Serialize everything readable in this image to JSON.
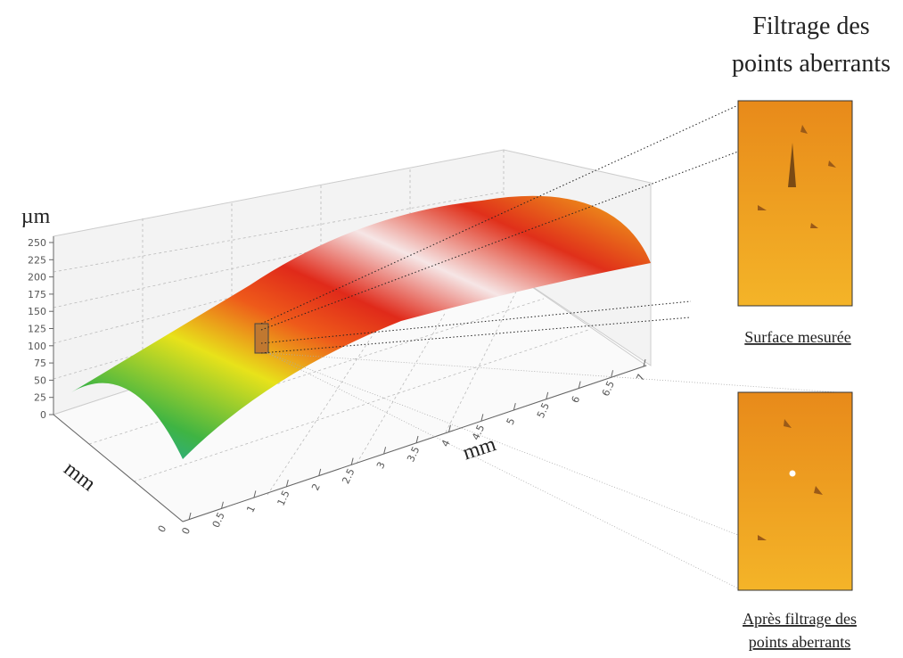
{
  "title": {
    "lines": [
      "Filtrage des",
      "points aberrants"
    ]
  },
  "axes": {
    "z_unit": "µm",
    "x_unit": "mm",
    "y_unit": "mm",
    "z_ticks": [
      0,
      25,
      50,
      75,
      100,
      125,
      150,
      175,
      200,
      225,
      250
    ],
    "x_ticks": [
      0,
      0.5,
      1,
      1.5,
      2,
      2.5,
      3,
      3.5,
      4,
      4.5,
      5,
      5.5,
      6,
      6.5,
      7
    ],
    "y_ticks": [
      0
    ]
  },
  "panels": [
    {
      "caption": [
        "Surface mesurée"
      ]
    },
    {
      "caption": [
        "Après filtrage des",
        "points aberrants"
      ]
    }
  ]
}
